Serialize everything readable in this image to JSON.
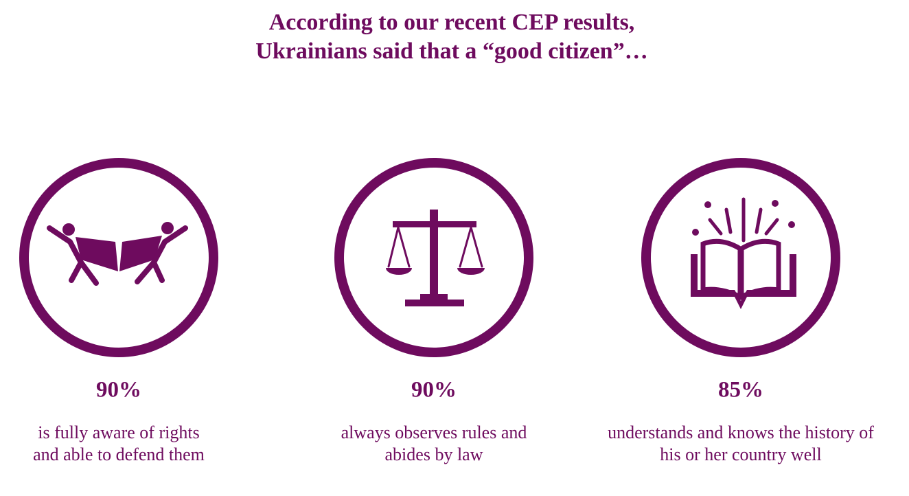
{
  "header": {
    "title_lines": [
      "According to our recent CEP results,",
      "Ukrainians said that a “good citizen”…"
    ]
  },
  "items": [
    {
      "stat": "90%",
      "description_lines": [
        "is fully aware of rights",
        "and able to defend them"
      ]
    },
    {
      "stat": "90%",
      "description_lines": [
        "always observes rules and",
        "abides by law"
      ]
    },
    {
      "stat": "85%",
      "description_lines": [
        "understands and knows the history of",
        "his or her country well"
      ]
    }
  ]
}
